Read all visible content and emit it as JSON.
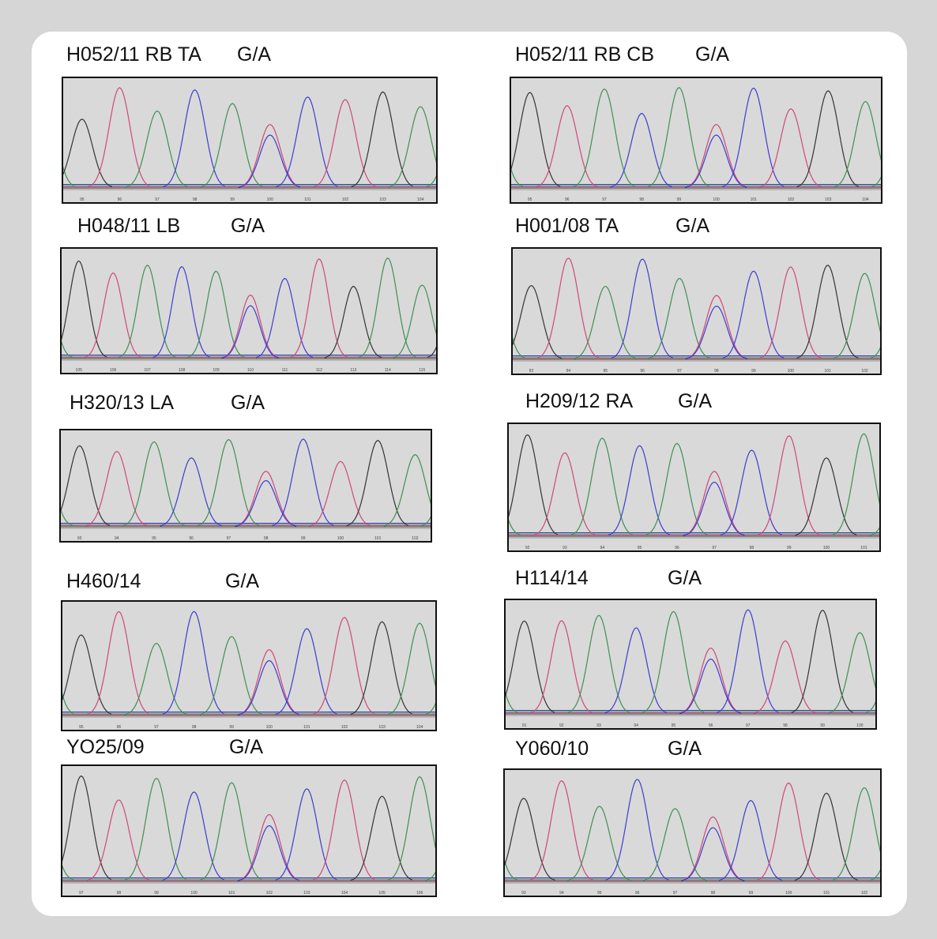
{
  "panels": [
    {
      "sample": "H052/11 RB TA",
      "genotype": "G/A",
      "positions": [
        "95",
        "96",
        "97",
        "98",
        "99",
        "100",
        "101",
        "102",
        "103",
        "104"
      ]
    },
    {
      "sample": "H052/11 RB CB",
      "genotype": "G/A",
      "positions": [
        "95",
        "96",
        "97",
        "98",
        "99",
        "100",
        "101",
        "102",
        "103",
        "104"
      ]
    },
    {
      "sample": "H048/11 LB",
      "genotype": "G/A",
      "positions": [
        "105",
        "106",
        "107",
        "108",
        "109",
        "110",
        "111",
        "112",
        "113",
        "114",
        "115"
      ]
    },
    {
      "sample": "H001/08 TA",
      "genotype": "G/A",
      "positions": [
        "93",
        "94",
        "95",
        "96",
        "97",
        "98",
        "99",
        "100",
        "101",
        "102"
      ]
    },
    {
      "sample": "H320/13 LA",
      "genotype": "G/A",
      "positions": [
        "93",
        "94",
        "95",
        "96",
        "97",
        "98",
        "99",
        "100",
        "101",
        "102"
      ]
    },
    {
      "sample": "H209/12 RA",
      "genotype": "G/A",
      "positions": [
        "92",
        "93",
        "94",
        "95",
        "96",
        "97",
        "98",
        "99",
        "100",
        "101"
      ]
    },
    {
      "sample": "H460/14",
      "genotype": "G/A",
      "positions": [
        "95",
        "96",
        "97",
        "98",
        "99",
        "100",
        "101",
        "102",
        "103",
        "104"
      ]
    },
    {
      "sample": "H114/14",
      "genotype": "G/A",
      "positions": [
        "91",
        "92",
        "93",
        "94",
        "95",
        "96",
        "97",
        "98",
        "99",
        "100"
      ]
    },
    {
      "sample": "YO25/09",
      "genotype": "G/A",
      "positions": [
        "97",
        "98",
        "99",
        "100",
        "101",
        "102",
        "103",
        "104",
        "105",
        "106"
      ]
    },
    {
      "sample": "Y060/10",
      "genotype": "G/A",
      "positions": [
        "93",
        "94",
        "95",
        "96",
        "97",
        "98",
        "99",
        "100",
        "101",
        "102"
      ]
    }
  ]
}
